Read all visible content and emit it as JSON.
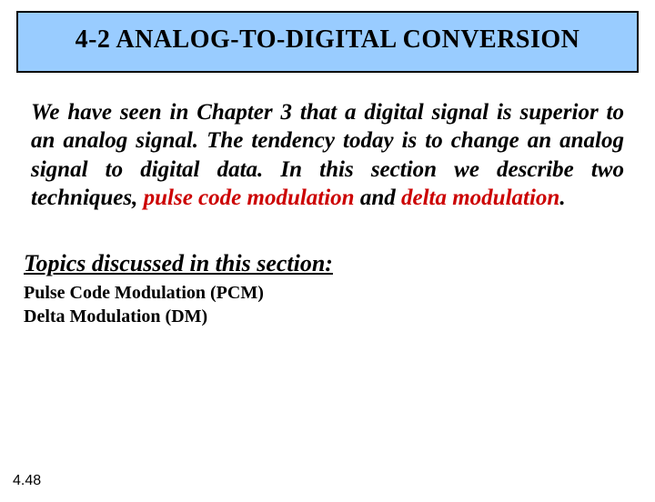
{
  "title": "4-2   ANALOG-TO-DIGITAL CONVERSION",
  "para_pre1": "We have seen in Chapter 3 that a digital signal is superior to an analog signal. The tendency today is to change an analog signal to digital data. In this section we describe two techniques, ",
  "kw1": "pulse code modulation",
  "para_mid": " and ",
  "kw2": "delta modulation",
  "para_end": ".",
  "topics_heading": "Topics discussed in this section:",
  "topic1": "Pulse Code Modulation (PCM)",
  "topic2": "Delta Modulation (DM)",
  "page_number": "4.48",
  "colors": {
    "title_bg": "#99ccff",
    "title_border": "#000000",
    "keyword": "#cc0000",
    "text": "#000000",
    "page_bg": "#ffffff"
  },
  "fonts": {
    "title_size_pt": 21,
    "body_size_pt": 19,
    "topics_heading_size_pt": 20,
    "topics_list_size_pt": 15,
    "pagenum_size_pt": 12
  }
}
